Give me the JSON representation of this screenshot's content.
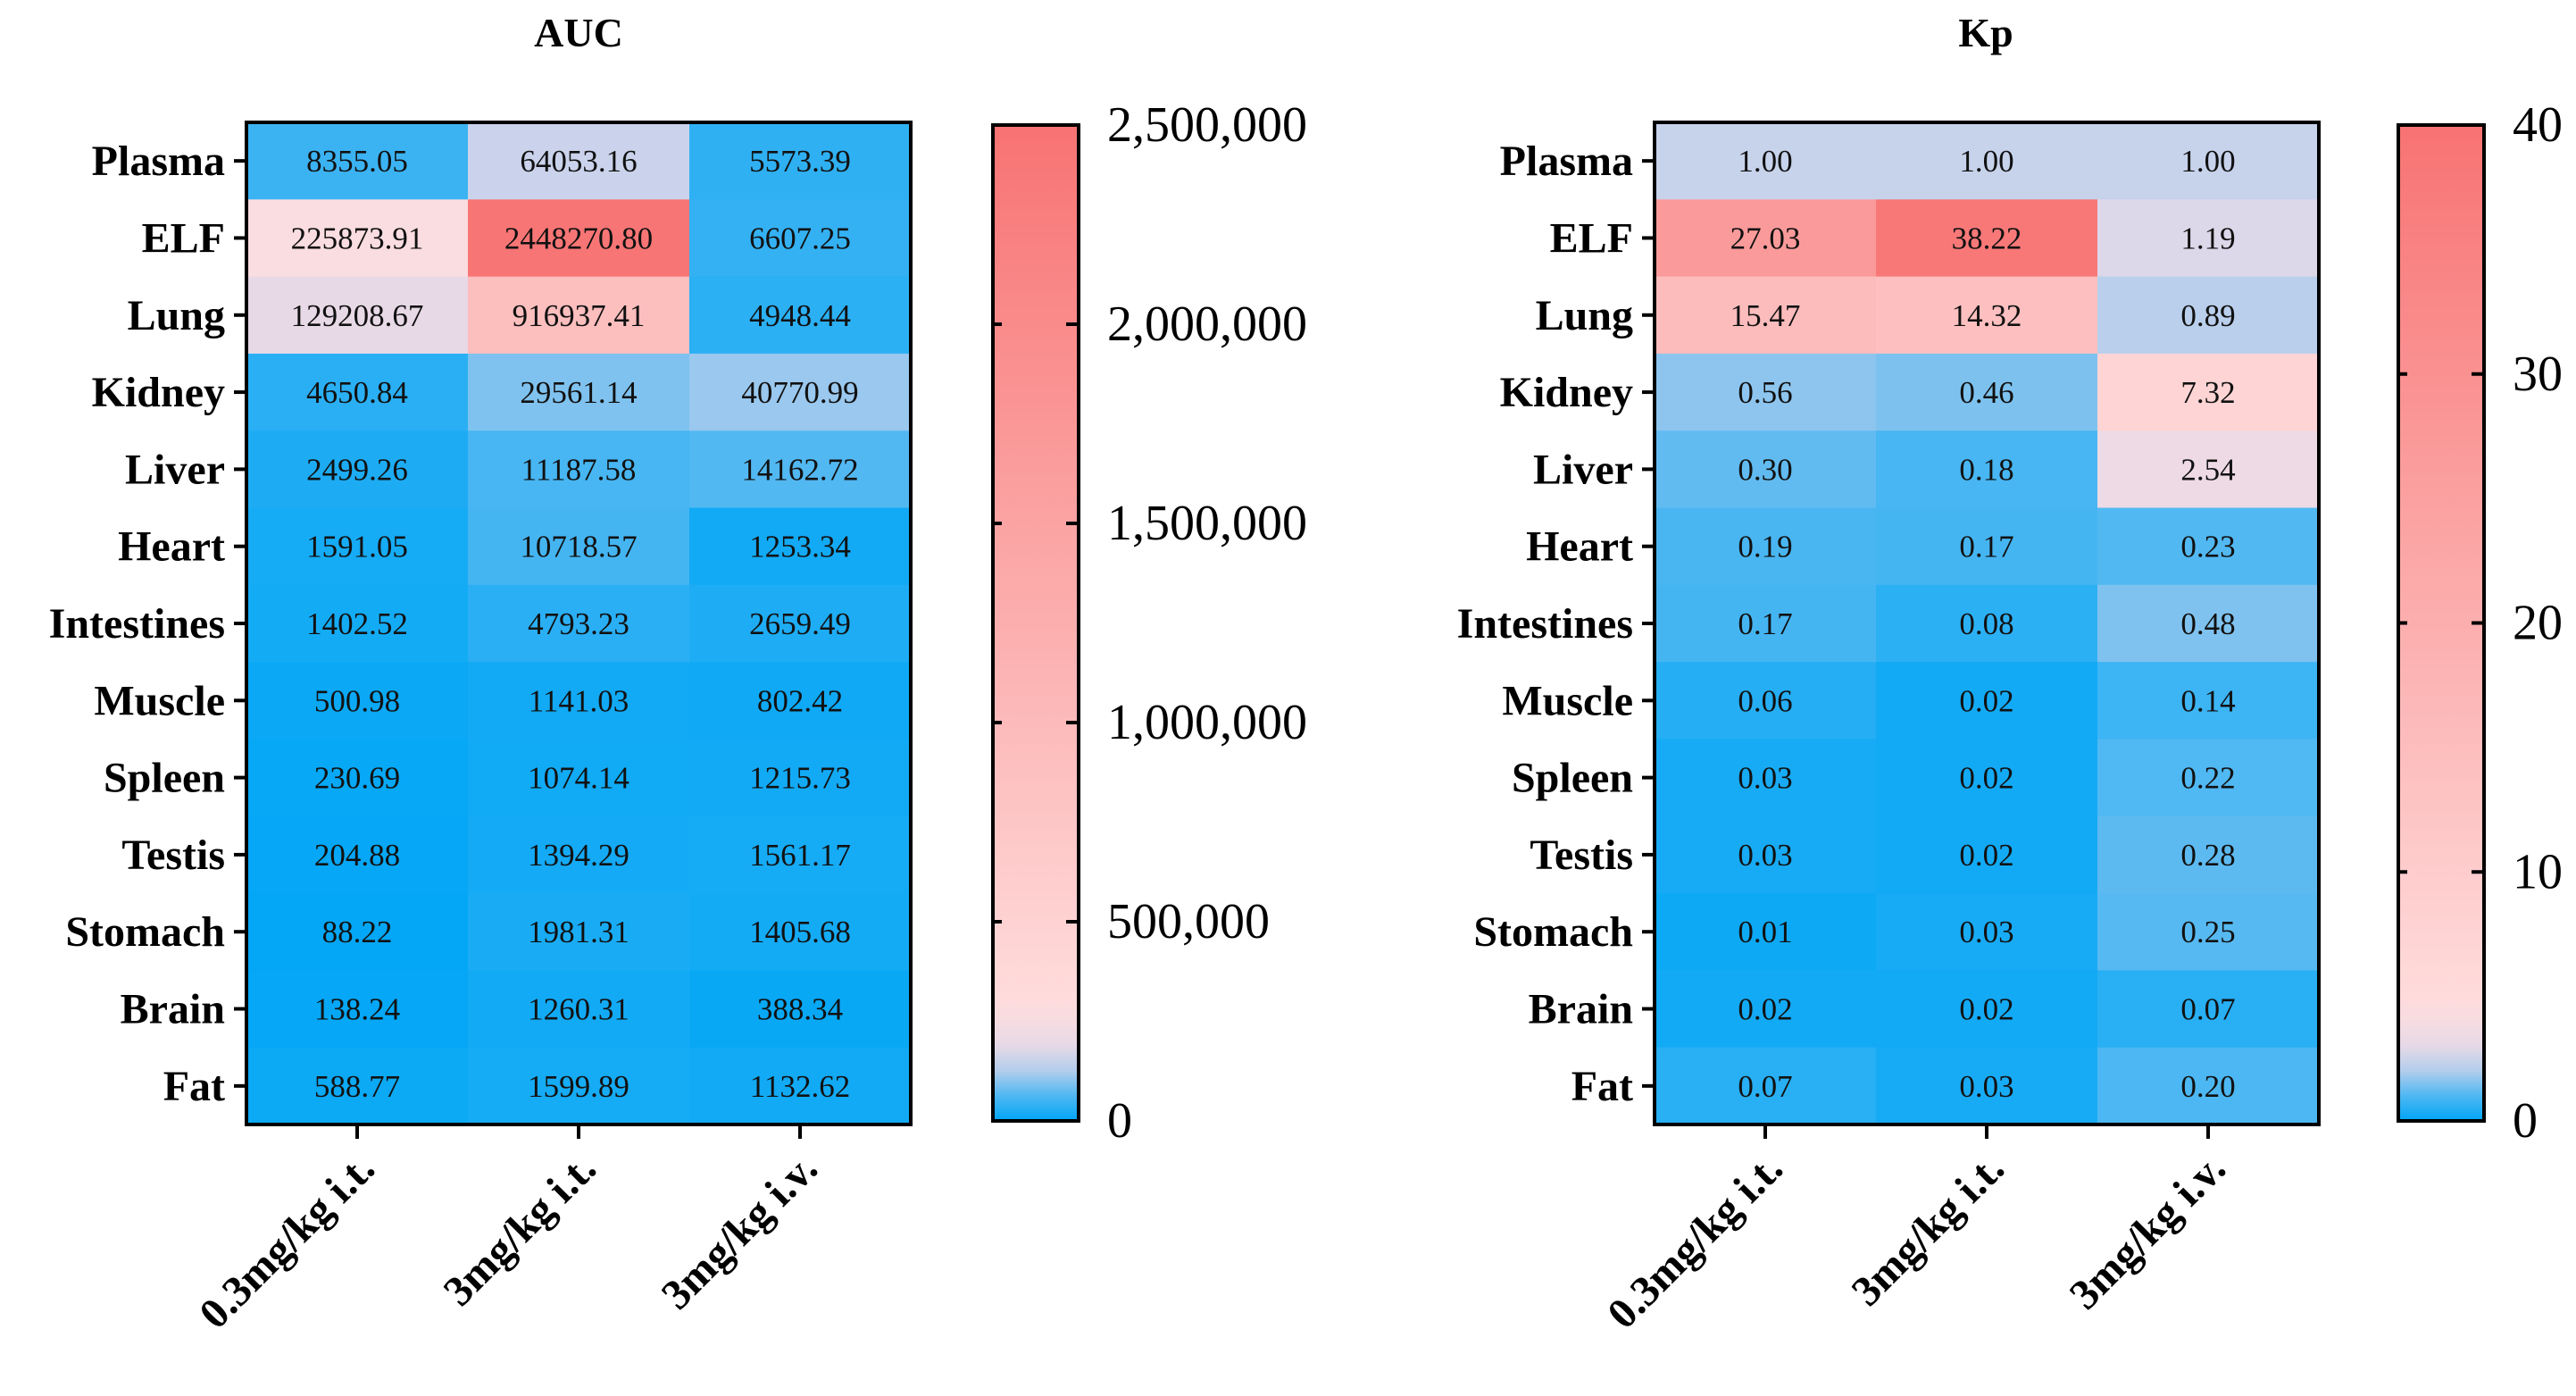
{
  "chart_data": [
    {
      "type": "heatmap",
      "title": "AUC",
      "rows": [
        "Plasma",
        "ELF",
        "Lung",
        "Kidney",
        "Liver",
        "Heart",
        "Intestines",
        "Muscle",
        "Spleen",
        "Testis",
        "Stomach",
        "Brain",
        "Fat"
      ],
      "columns": [
        "0.3mg/kg i.t.",
        "3mg/kg i.t.",
        "3mg/kg i.v."
      ],
      "values": [
        [
          "8355.05",
          "64053.16",
          "5573.39"
        ],
        [
          "225873.91",
          "2448270.80",
          "6607.25"
        ],
        [
          "129208.67",
          "916937.41",
          "4948.44"
        ],
        [
          "4650.84",
          "29561.14",
          "40770.99"
        ],
        [
          "2499.26",
          "11187.58",
          "14162.72"
        ],
        [
          "1591.05",
          "10718.57",
          "1253.34"
        ],
        [
          "1402.52",
          "4793.23",
          "2659.49"
        ],
        [
          "500.98",
          "1141.03",
          "802.42"
        ],
        [
          "230.69",
          "1074.14",
          "1215.73"
        ],
        [
          "204.88",
          "1394.29",
          "1561.17"
        ],
        [
          "88.22",
          "1981.31",
          "1405.68"
        ],
        [
          "138.24",
          "1260.31",
          "388.34"
        ],
        [
          "588.77",
          "1599.89",
          "1132.62"
        ]
      ],
      "colorbar": {
        "min": 0,
        "max": 2500000,
        "ticks": [
          0,
          500000,
          1000000,
          1500000,
          2000000,
          2500000
        ],
        "tick_labels": [
          "0",
          "500,000",
          "1,000,000",
          "1,500,000",
          "2,000,000",
          "2,500,000"
        ]
      }
    },
    {
      "type": "heatmap",
      "title": "Kp",
      "rows": [
        "Plasma",
        "ELF",
        "Lung",
        "Kidney",
        "Liver",
        "Heart",
        "Intestines",
        "Muscle",
        "Spleen",
        "Testis",
        "Stomach",
        "Brain",
        "Fat"
      ],
      "columns": [
        "0.3mg/kg i.t.",
        "3mg/kg i.t.",
        "3mg/kg i.v."
      ],
      "values": [
        [
          "1.00",
          "1.00",
          "1.00"
        ],
        [
          "27.03",
          "38.22",
          "1.19"
        ],
        [
          "15.47",
          "14.32",
          "0.89"
        ],
        [
          "0.56",
          "0.46",
          "7.32"
        ],
        [
          "0.30",
          "0.18",
          "2.54"
        ],
        [
          "0.19",
          "0.17",
          "0.23"
        ],
        [
          "0.17",
          "0.08",
          "0.48"
        ],
        [
          "0.06",
          "0.02",
          "0.14"
        ],
        [
          "0.03",
          "0.02",
          "0.22"
        ],
        [
          "0.03",
          "0.02",
          "0.28"
        ],
        [
          "0.01",
          "0.03",
          "0.25"
        ],
        [
          "0.02",
          "0.02",
          "0.07"
        ],
        [
          "0.07",
          "0.03",
          "0.20"
        ]
      ],
      "colorbar": {
        "min": 0,
        "max": 40,
        "ticks": [
          0,
          10,
          20,
          30,
          40
        ],
        "tick_labels": [
          "0",
          "10",
          "20",
          "30",
          "40"
        ]
      }
    }
  ]
}
